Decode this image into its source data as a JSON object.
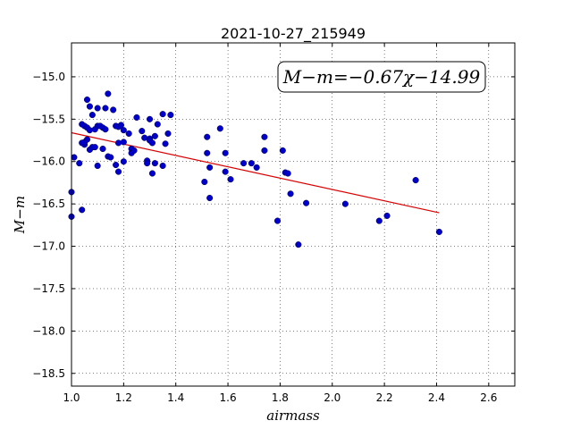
{
  "chart_data": {
    "type": "scatter",
    "title": "2021-10-27_215949",
    "xlabel": "airmass",
    "ylabel": "M−m",
    "xlim": [
      1.0,
      2.7
    ],
    "ylim": [
      -18.65,
      -14.6
    ],
    "x_ticks": [
      1.0,
      1.2,
      1.4,
      1.6,
      1.8,
      2.0,
      2.2,
      2.4,
      2.6
    ],
    "x_tick_labels": [
      "1.0",
      "1.2",
      "1.4",
      "1.6",
      "1.8",
      "2.0",
      "2.2",
      "2.4",
      "2.6"
    ],
    "y_ticks": [
      -15.0,
      -15.5,
      -16.0,
      -16.5,
      -17.0,
      -17.5,
      -18.0,
      -18.5
    ],
    "y_tick_labels": [
      "−15.0",
      "−15.5",
      "−16.0",
      "−16.5",
      "−17.0",
      "−17.5",
      "−18.0",
      "−18.5"
    ],
    "grid": true,
    "point_color": "#0000cc",
    "fit_color": "#dd0000",
    "annotation": "M−m=−0.67χ−14.99",
    "fit": {
      "slope": -0.67,
      "intercept": -14.99,
      "x_range": [
        1.0,
        2.41
      ]
    },
    "series": [
      {
        "x": [
          1.0,
          1.0,
          1.01,
          1.03,
          1.04,
          1.04,
          1.04,
          1.05,
          1.05,
          1.05,
          1.06,
          1.06,
          1.06,
          1.07,
          1.07,
          1.07,
          1.08,
          1.08,
          1.09,
          1.09,
          1.1,
          1.1,
          1.1,
          1.11,
          1.12,
          1.12,
          1.13,
          1.13,
          1.14,
          1.14,
          1.15,
          1.16,
          1.17,
          1.17,
          1.18,
          1.18,
          1.18,
          1.19,
          1.2,
          1.2,
          1.2,
          1.22,
          1.23,
          1.23,
          1.24,
          1.25,
          1.27,
          1.28,
          1.29,
          1.29,
          1.3,
          1.3,
          1.3,
          1.31,
          1.31,
          1.32,
          1.32,
          1.33,
          1.35,
          1.35,
          1.36,
          1.37,
          1.38,
          1.51,
          1.52,
          1.52,
          1.53,
          1.53,
          1.57,
          1.59,
          1.59,
          1.61,
          1.66,
          1.69,
          1.71,
          1.74,
          1.74,
          1.79,
          1.81,
          1.82,
          1.83,
          1.84,
          1.87,
          1.9,
          2.05,
          2.18,
          2.21,
          2.32,
          2.41
        ],
        "y": [
          -16.36,
          -16.65,
          -15.95,
          -16.02,
          -15.56,
          -15.78,
          -16.57,
          -15.8,
          -15.58,
          -15.77,
          -15.74,
          -15.27,
          -15.6,
          -15.86,
          -15.35,
          -15.63,
          -15.83,
          -15.45,
          -15.83,
          -15.62,
          -15.37,
          -16.05,
          -15.58,
          -15.58,
          -15.6,
          -15.85,
          -15.62,
          -15.37,
          -15.2,
          -15.94,
          -15.95,
          -15.39,
          -16.04,
          -15.58,
          -16.12,
          -15.78,
          -15.59,
          -15.57,
          -16.0,
          -15.77,
          -15.63,
          -15.67,
          -15.85,
          -15.9,
          -15.87,
          -15.48,
          -15.64,
          -15.72,
          -15.99,
          -16.02,
          -15.5,
          -15.73,
          -15.75,
          -16.14,
          -15.78,
          -15.7,
          -16.02,
          -15.56,
          -16.05,
          -15.44,
          -15.79,
          -15.67,
          -15.45,
          -16.24,
          -15.71,
          -15.9,
          -16.07,
          -16.43,
          -15.61,
          -15.9,
          -16.12,
          -16.21,
          -16.02,
          -16.02,
          -16.07,
          -15.71,
          -15.87,
          -16.7,
          -15.87,
          -16.13,
          -16.14,
          -16.38,
          -16.98,
          -16.49,
          -16.5,
          -16.7,
          -16.64,
          -16.22,
          -16.83
        ]
      }
    ]
  }
}
